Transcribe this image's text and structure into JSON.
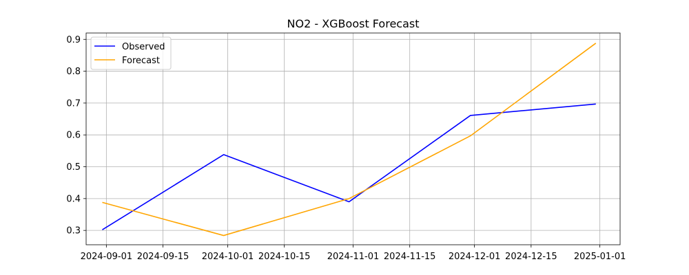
{
  "chart_data": {
    "type": "line",
    "title": "NO2 - XGBoost Forecast",
    "xlabel": "",
    "ylabel": "",
    "x_scale": "date",
    "xlim": [
      "2024-08-27",
      "2025-01-06"
    ],
    "ylim": [
      0.255,
      0.92
    ],
    "xticks": [
      "2024-09-01",
      "2024-09-15",
      "2024-10-01",
      "2024-10-15",
      "2024-11-01",
      "2024-11-15",
      "2024-12-01",
      "2024-12-15",
      "2025-01-01"
    ],
    "yticks": [
      0.3,
      0.4,
      0.5,
      0.6,
      0.7,
      0.8,
      0.9
    ],
    "grid": true,
    "legend_position": "top-left",
    "series": [
      {
        "name": "Observed",
        "color": "#0000ff",
        "x": [
          "2024-08-31",
          "2024-09-30",
          "2024-10-31",
          "2024-11-30",
          "2024-12-31"
        ],
        "y": [
          0.302,
          0.538,
          0.39,
          0.661,
          0.697
        ]
      },
      {
        "name": "Forecast",
        "color": "#ffa500",
        "x": [
          "2024-08-31",
          "2024-09-30",
          "2024-10-31",
          "2024-11-30",
          "2024-12-31"
        ],
        "y": [
          0.388,
          0.284,
          0.4,
          0.597,
          0.888
        ]
      }
    ]
  }
}
